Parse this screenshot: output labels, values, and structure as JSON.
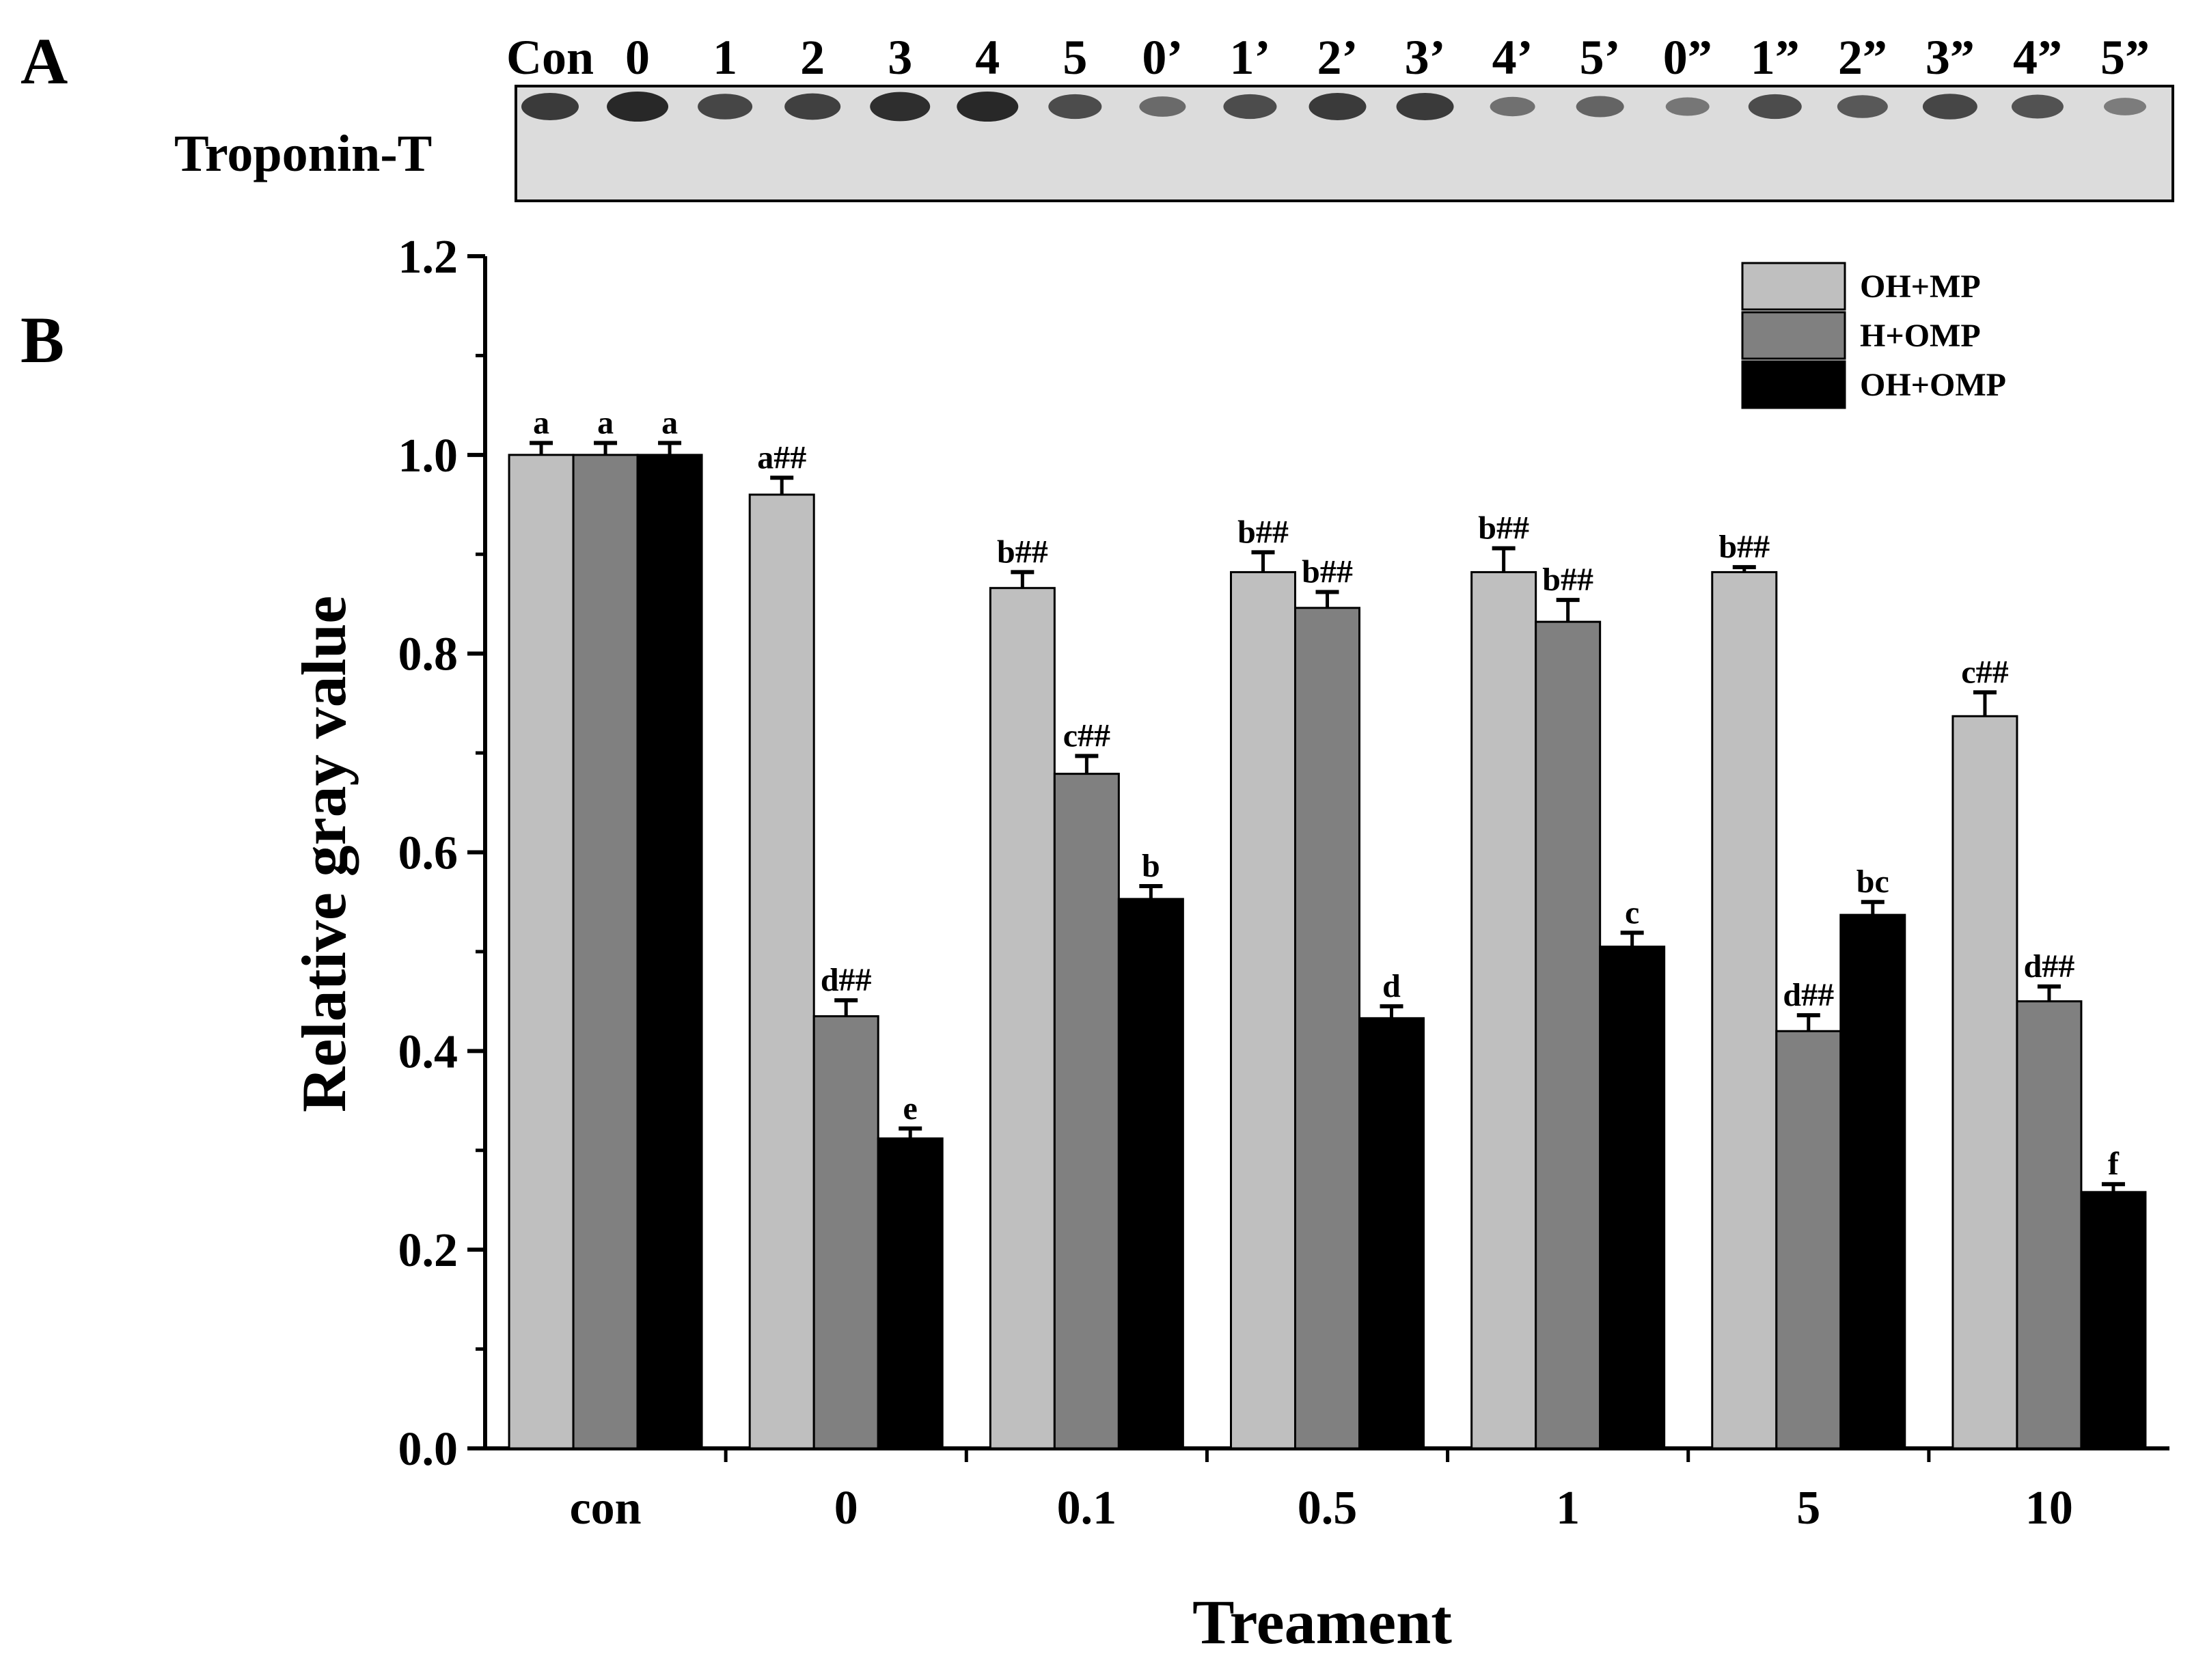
{
  "panel_a": {
    "label": "A",
    "protein_label": "Troponin-T",
    "lanes": [
      "Con",
      "0",
      "1",
      "2",
      "3",
      "4",
      "5",
      "0’",
      "1’",
      "2’",
      "3’",
      "4’",
      "5’",
      "0”",
      "1”",
      "2”",
      "3”",
      "4”",
      "5”"
    ],
    "band_intensity": [
      0.85,
      1.0,
      0.75,
      0.8,
      0.95,
      1.0,
      0.7,
      0.45,
      0.7,
      0.85,
      0.85,
      0.4,
      0.5,
      0.35,
      0.7,
      0.6,
      0.75,
      0.65,
      0.3
    ]
  },
  "panel_b": {
    "label": "B"
  },
  "colors": {
    "OH+MP": "#bfbfbf",
    "H+OMP": "#808080",
    "OH+OMP": "#000000"
  },
  "chart_data": {
    "type": "bar",
    "xlabel": "Treament",
    "ylabel": "Relative gray value",
    "categories": [
      "con",
      "0",
      "0.1",
      "0.5",
      "1",
      "5",
      "10"
    ],
    "ylim": [
      0.0,
      1.2
    ],
    "yticks": [
      "0.0",
      "0.2",
      "0.4",
      "0.6",
      "0.8",
      "1.0",
      "1.2"
    ],
    "legend_position": "top-right",
    "series": [
      {
        "name": "OH+MP",
        "values": [
          1.0,
          0.96,
          0.866,
          0.882,
          0.882,
          0.882,
          0.737
        ],
        "errors": [
          0.012,
          0.017,
          0.016,
          0.02,
          0.024,
          0.005,
          0.024
        ],
        "labels": [
          "a",
          "a##",
          "b##",
          "b##",
          "b##",
          "b##",
          "c##"
        ]
      },
      {
        "name": "H+OMP",
        "values": [
          1.0,
          0.435,
          0.679,
          0.846,
          0.832,
          0.42,
          0.45
        ],
        "errors": [
          0.012,
          0.016,
          0.018,
          0.016,
          0.022,
          0.016,
          0.015
        ],
        "labels": [
          "a",
          "d##",
          "c##",
          "b##",
          "b##",
          "d##",
          "d##"
        ]
      },
      {
        "name": "OH+OMP",
        "values": [
          1.0,
          0.312,
          0.553,
          0.433,
          0.505,
          0.537,
          0.258
        ],
        "errors": [
          0.012,
          0.01,
          0.013,
          0.012,
          0.014,
          0.013,
          0.008
        ],
        "labels": [
          "a",
          "e",
          "b",
          "d",
          "c",
          "bc",
          "f"
        ]
      }
    ]
  }
}
